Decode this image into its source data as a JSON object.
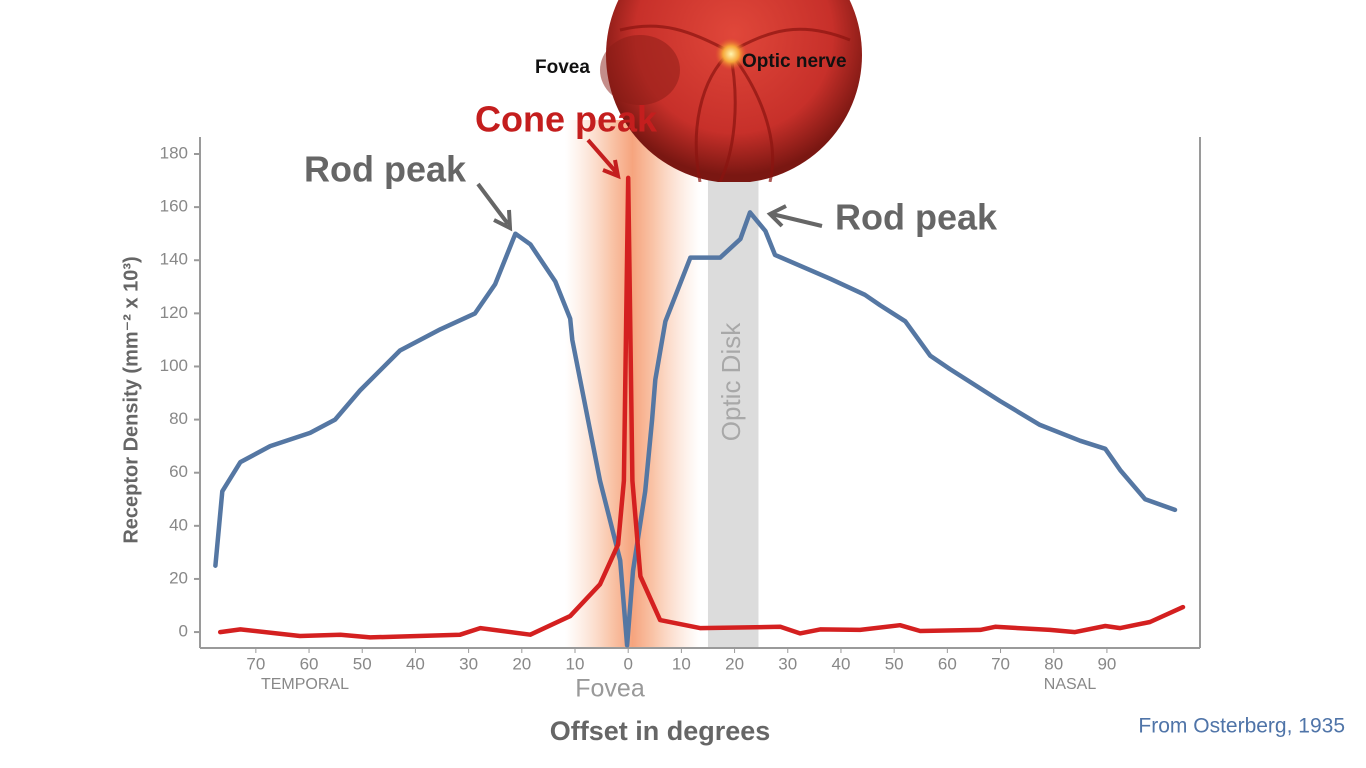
{
  "chart_data": {
    "type": "line",
    "ylabel": "Receptor Density (mm⁻² x 10³)",
    "xlabel": "Offset in degrees",
    "source": "From Osterberg, 1935",
    "temporal_label": "TEMPORAL",
    "nasal_label": "NASAL",
    "fovea_axis_label": "Fovea",
    "image_labels": {
      "fovea": "Fovea",
      "optic_nerve": "Optic nerve"
    },
    "annotations": {
      "cone_peak": "Cone peak",
      "rod_peak_left": "Rod peak",
      "rod_peak_right": "Rod peak"
    },
    "optic_disk": {
      "label": "Optic Disk",
      "range": [
        15,
        24.5
      ]
    },
    "xlim": [
      -80.5,
      107.5
    ],
    "ylim": [
      -6,
      186.4
    ],
    "xticks": [
      {
        "value": -70,
        "label": "70"
      },
      {
        "value": -60,
        "label": "60"
      },
      {
        "value": -50,
        "label": "50"
      },
      {
        "value": -40,
        "label": "40"
      },
      {
        "value": -30,
        "label": "30"
      },
      {
        "value": -20,
        "label": "20"
      },
      {
        "value": -10,
        "label": "10"
      },
      0,
      10,
      20,
      30,
      40,
      50,
      60,
      70,
      80,
      90
    ],
    "yticks": [
      0,
      20,
      40,
      60,
      80,
      100,
      120,
      140,
      160,
      180
    ],
    "series": [
      {
        "name": "Rods",
        "color": "#5577a3",
        "x": [
          -77.6,
          -76.3,
          -72.9,
          -67.3,
          -59.8,
          -55.1,
          -50.4,
          -42.9,
          -35.3,
          -28.8,
          -25,
          -21.2,
          -18.4,
          -13.7,
          -10.9,
          -10.5,
          -5.3,
          -1.5,
          -0.2,
          0.9,
          3.2,
          4.5,
          5.1,
          7,
          11.7,
          17.3,
          21.1,
          22.9,
          25.8,
          27.6,
          38,
          44.5,
          47.4,
          52.1,
          56.8,
          60.5,
          69.9,
          77.4,
          85,
          89.7,
          92.5,
          97.2,
          102.8
        ],
        "values": [
          25,
          53,
          64,
          70,
          75,
          80,
          91,
          106,
          114,
          120,
          131,
          150,
          146,
          132,
          118,
          110,
          57,
          27,
          -5,
          23,
          53,
          80,
          95,
          117,
          141,
          141,
          148,
          158,
          151,
          142,
          133,
          127,
          123,
          117,
          104,
          99,
          87,
          78,
          72,
          69,
          61,
          50,
          46
        ]
      },
      {
        "name": "Cones",
        "color": "#d42020",
        "x": [
          -76.7,
          -72.9,
          -61.7,
          -54.1,
          -48.5,
          -31.6,
          -27.8,
          -18.4,
          -10.9,
          -5.3,
          -1.9,
          -0.8,
          0,
          0.8,
          2.3,
          6,
          13.5,
          28.6,
          32.3,
          36.1,
          43.6,
          51.1,
          54.9,
          66.2,
          69,
          79.3,
          84,
          89.7,
          92.5,
          98.1,
          104.3
        ],
        "values": [
          0,
          1,
          -1.5,
          -1,
          -2,
          -1,
          1.5,
          -1,
          6,
          18,
          33,
          57,
          171,
          57,
          21,
          4.5,
          1.5,
          2,
          -0.5,
          1,
          0.8,
          2.6,
          0.4,
          0.8,
          2,
          0.8,
          0,
          2.3,
          1.5,
          3.8,
          9.4
        ]
      }
    ]
  }
}
